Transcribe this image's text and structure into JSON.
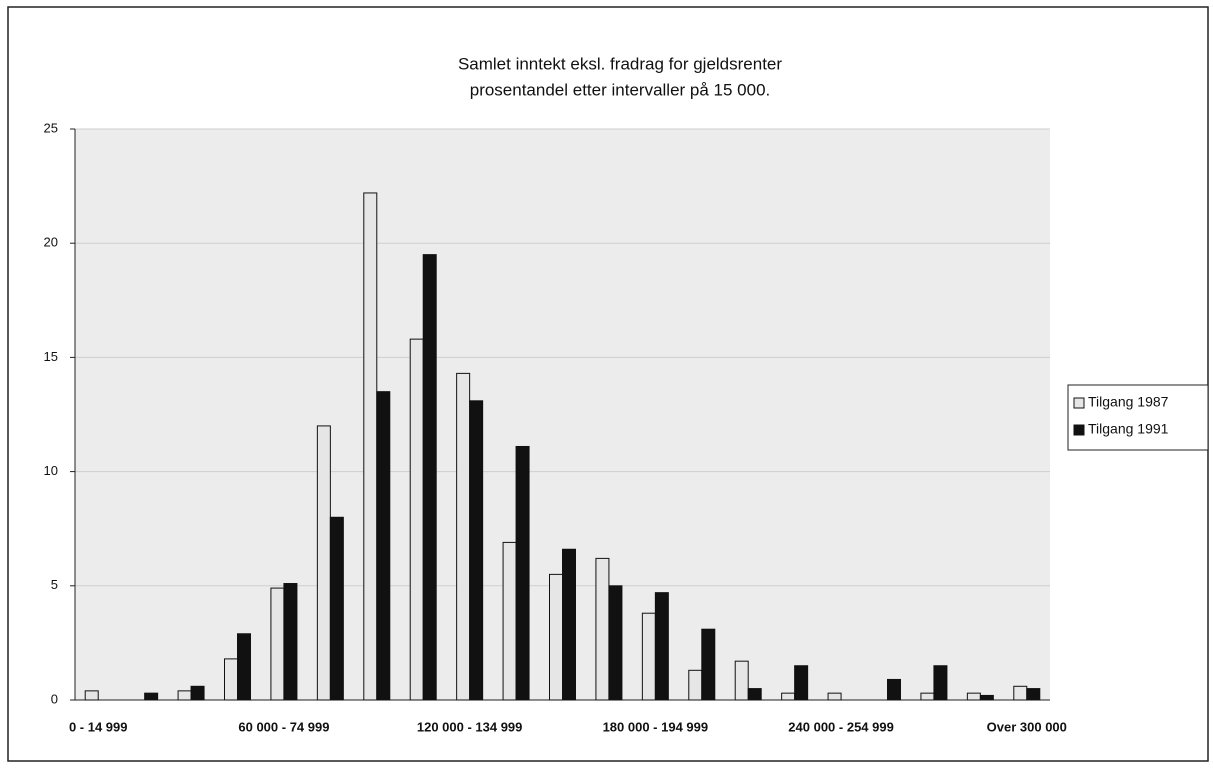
{
  "chart_data": {
    "type": "bar",
    "title": [
      "Samlet inntekt eksl. fradrag for gjeldsrenter",
      "prosentandel etter intervaller på 15 000."
    ],
    "categories": [
      "0 - 14 999",
      null,
      null,
      null,
      "60 000 - 74 999",
      null,
      null,
      null,
      "120 000 - 134 999",
      null,
      null,
      null,
      "180 000 - 194 999",
      null,
      null,
      null,
      "240 000 - 254 999",
      null,
      null,
      null,
      "Over 300 000"
    ],
    "series": [
      {
        "name": "Tilgang 1987",
        "color": "#e6e6e6",
        "values": [
          0.4,
          0,
          0.4,
          1.8,
          4.9,
          12.0,
          22.2,
          15.8,
          14.3,
          6.9,
          5.5,
          6.2,
          3.8,
          1.3,
          1.7,
          0.3,
          0.3,
          0,
          0.3,
          0.3,
          0.6
        ]
      },
      {
        "name": "Tilgang 1991",
        "color": "#111111",
        "values": [
          0,
          0.3,
          0.6,
          2.9,
          5.1,
          8.0,
          13.5,
          19.5,
          13.1,
          11.1,
          6.6,
          5.0,
          4.7,
          3.1,
          0.5,
          1.5,
          0,
          0.9,
          1.5,
          0.2,
          0.5
        ]
      }
    ],
    "ylim": [
      0,
      25
    ],
    "yticks": [
      0,
      5,
      10,
      15,
      20,
      25
    ],
    "grid": true,
    "legend": "right"
  }
}
